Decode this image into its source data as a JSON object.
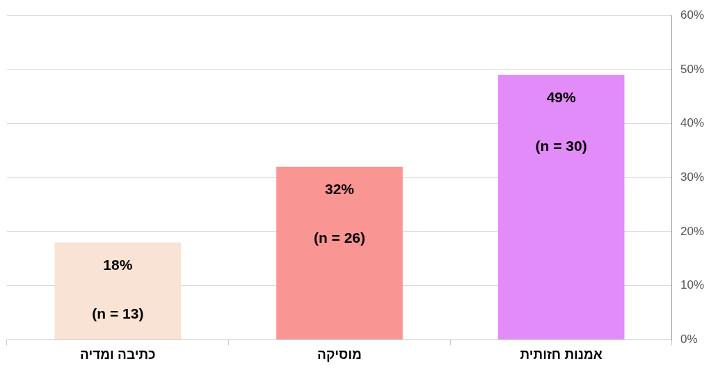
{
  "chart_data": {
    "type": "bar",
    "categories": [
      "כתיבה ומדיה",
      "מוסיקה",
      "אמנות חזותית"
    ],
    "values": [
      18,
      32,
      49
    ],
    "colors": [
      "#f9e3d5",
      "#f99694",
      "#e18cf8"
    ],
    "value_labels": [
      "18%",
      "32%",
      "49%"
    ],
    "annotations": [
      "(n = 13)",
      "(n = 26)",
      "(n = 30)"
    ],
    "ylim": [
      0,
      60
    ],
    "yticks": [
      {
        "value": 0,
        "label": "0%"
      },
      {
        "value": 10,
        "label": "10%"
      },
      {
        "value": 20,
        "label": "20%"
      },
      {
        "value": 30,
        "label": "30%"
      },
      {
        "value": 40,
        "label": "40%"
      },
      {
        "value": 50,
        "label": "50%"
      },
      {
        "value": 60,
        "label": "60%"
      }
    ],
    "grid": "y",
    "legend": false
  }
}
